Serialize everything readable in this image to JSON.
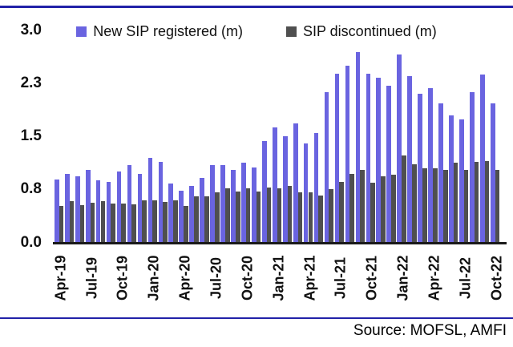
{
  "footer": {
    "source": "Source: MOFSL, AMFI"
  },
  "colors": {
    "bar_blue": "#6A64E0",
    "bar_gray": "#4F4F4F",
    "rule_navy": "#2121A8",
    "axis_black": "#1A1A1A"
  },
  "chart_data": {
    "type": "bar",
    "title": "",
    "xlabel": "",
    "ylabel": "",
    "grid": false,
    "legend_position": "top",
    "ylim": [
      0.0,
      3.0
    ],
    "y_ticks": [
      {
        "label": "3.0",
        "value": 3.0
      },
      {
        "label": "2.3",
        "value": 2.25
      },
      {
        "label": "1.5",
        "value": 1.5
      },
      {
        "label": "0.8",
        "value": 0.75
      },
      {
        "label": "0.0",
        "value": 0.0
      }
    ],
    "x_tick_every": 3,
    "categories": [
      "Apr-19",
      "May-19",
      "Jun-19",
      "Jul-19",
      "Aug-19",
      "Sep-19",
      "Oct-19",
      "Nov-19",
      "Dec-19",
      "Jan-20",
      "Feb-20",
      "Mar-20",
      "Apr-20",
      "May-20",
      "Jun-20",
      "Jul-20",
      "Aug-20",
      "Sep-20",
      "Oct-20",
      "Nov-20",
      "Dec-20",
      "Jan-21",
      "Feb-21",
      "Mar-21",
      "Apr-21",
      "May-21",
      "Jun-21",
      "Jul-21",
      "Aug-21",
      "Sep-21",
      "Oct-21",
      "Nov-21",
      "Dec-21",
      "Jan-22",
      "Feb-22",
      "Mar-22",
      "Apr-22",
      "May-22",
      "Jun-22",
      "Jul-22",
      "Aug-22",
      "Sep-22",
      "Oct-22"
    ],
    "series": [
      {
        "name": "New SIP registered (m)",
        "color": "#6A64E0",
        "values": [
          0.89,
          0.97,
          0.93,
          1.02,
          0.88,
          0.86,
          1.0,
          1.09,
          0.97,
          1.2,
          1.14,
          0.83,
          0.73,
          0.8,
          0.91,
          1.09,
          1.09,
          1.03,
          1.13,
          1.06,
          1.43,
          1.62,
          1.5,
          1.68,
          1.4,
          1.55,
          2.12,
          2.38,
          2.5,
          2.69,
          2.38,
          2.33,
          2.21,
          2.66,
          2.35,
          2.1,
          2.18,
          1.97,
          1.8,
          1.74,
          2.12,
          2.37,
          1.97
        ]
      },
      {
        "name": "SIP discontinued (m)",
        "color": "#4F4F4F",
        "values": [
          0.52,
          0.58,
          0.53,
          0.56,
          0.58,
          0.55,
          0.55,
          0.54,
          0.59,
          0.6,
          0.57,
          0.6,
          0.52,
          0.65,
          0.65,
          0.71,
          0.76,
          0.72,
          0.77,
          0.72,
          0.78,
          0.76,
          0.8,
          0.71,
          0.71,
          0.66,
          0.75,
          0.85,
          0.97,
          1.02,
          0.84,
          0.93,
          0.96,
          1.23,
          1.1,
          1.05,
          1.05,
          1.03,
          1.13,
          1.03,
          1.14,
          1.15,
          1.02
        ]
      }
    ]
  }
}
